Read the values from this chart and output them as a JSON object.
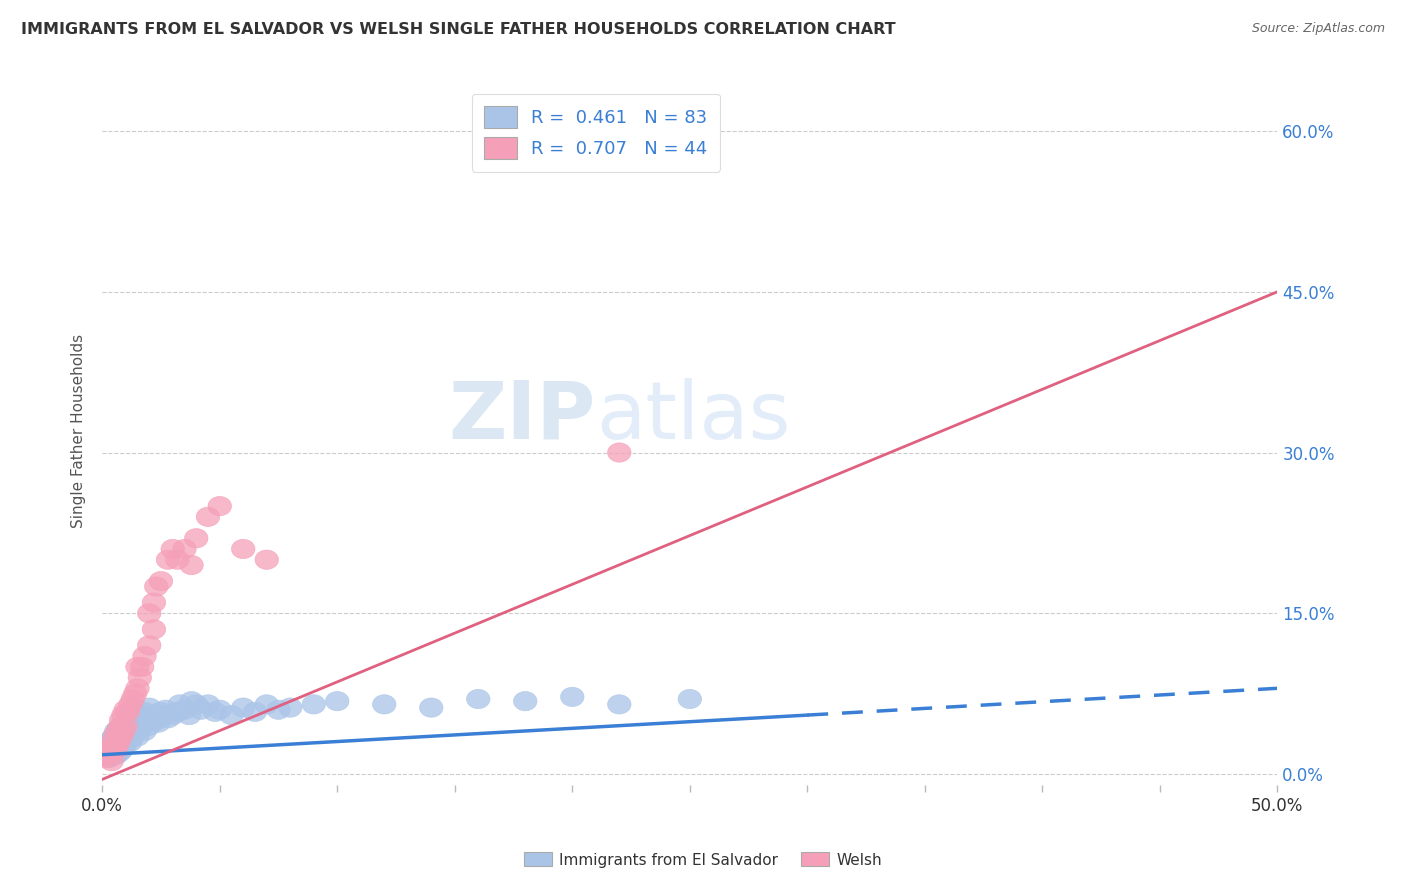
{
  "title": "IMMIGRANTS FROM EL SALVADOR VS WELSH SINGLE FATHER HOUSEHOLDS CORRELATION CHART",
  "source": "Source: ZipAtlas.com",
  "ylabel": "Single Father Households",
  "ytick_values": [
    0.0,
    0.15,
    0.3,
    0.45,
    0.6
  ],
  "xlim": [
    0.0,
    0.5
  ],
  "ylim": [
    -0.01,
    0.65
  ],
  "legend_line1": "R =  0.461   N = 83",
  "legend_line2": "R =  0.707   N = 44",
  "blue_color": "#aac4e8",
  "blue_line_color": "#3a7fd5",
  "pink_color": "#f5a0b8",
  "pink_line_color": "#e06080",
  "watermark_zip": "ZIP",
  "watermark_atlas": "atlas",
  "blue_scatter_x": [
    0.001,
    0.002,
    0.002,
    0.003,
    0.003,
    0.003,
    0.004,
    0.004,
    0.004,
    0.005,
    0.005,
    0.005,
    0.006,
    0.006,
    0.006,
    0.006,
    0.007,
    0.007,
    0.007,
    0.007,
    0.008,
    0.008,
    0.008,
    0.008,
    0.009,
    0.009,
    0.009,
    0.01,
    0.01,
    0.01,
    0.011,
    0.011,
    0.012,
    0.012,
    0.012,
    0.013,
    0.013,
    0.014,
    0.015,
    0.015,
    0.015,
    0.016,
    0.016,
    0.017,
    0.018,
    0.018,
    0.019,
    0.02,
    0.02,
    0.021,
    0.022,
    0.023,
    0.024,
    0.025,
    0.026,
    0.027,
    0.028,
    0.03,
    0.032,
    0.033,
    0.035,
    0.037,
    0.038,
    0.04,
    0.042,
    0.045,
    0.048,
    0.05,
    0.055,
    0.06,
    0.065,
    0.07,
    0.075,
    0.08,
    0.09,
    0.1,
    0.12,
    0.14,
    0.16,
    0.18,
    0.2,
    0.22,
    0.25
  ],
  "blue_scatter_y": [
    0.02,
    0.018,
    0.025,
    0.015,
    0.022,
    0.03,
    0.018,
    0.025,
    0.032,
    0.02,
    0.028,
    0.035,
    0.018,
    0.025,
    0.03,
    0.04,
    0.02,
    0.028,
    0.035,
    0.042,
    0.022,
    0.03,
    0.038,
    0.045,
    0.025,
    0.032,
    0.042,
    0.028,
    0.035,
    0.045,
    0.032,
    0.05,
    0.03,
    0.04,
    0.055,
    0.035,
    0.048,
    0.04,
    0.035,
    0.045,
    0.06,
    0.042,
    0.055,
    0.048,
    0.04,
    0.058,
    0.05,
    0.045,
    0.062,
    0.052,
    0.055,
    0.05,
    0.048,
    0.058,
    0.055,
    0.06,
    0.052,
    0.055,
    0.058,
    0.065,
    0.06,
    0.055,
    0.068,
    0.065,
    0.06,
    0.065,
    0.058,
    0.06,
    0.055,
    0.062,
    0.058,
    0.065,
    0.06,
    0.062,
    0.065,
    0.068,
    0.065,
    0.062,
    0.07,
    0.068,
    0.072,
    0.065,
    0.07
  ],
  "pink_scatter_x": [
    0.001,
    0.002,
    0.003,
    0.004,
    0.004,
    0.005,
    0.005,
    0.006,
    0.006,
    0.007,
    0.007,
    0.008,
    0.008,
    0.009,
    0.009,
    0.01,
    0.01,
    0.011,
    0.012,
    0.013,
    0.014,
    0.015,
    0.015,
    0.016,
    0.017,
    0.018,
    0.02,
    0.02,
    0.022,
    0.022,
    0.023,
    0.025,
    0.028,
    0.03,
    0.032,
    0.035,
    0.038,
    0.04,
    0.045,
    0.05,
    0.06,
    0.07,
    0.18,
    0.22
  ],
  "pink_scatter_y": [
    0.02,
    0.015,
    0.018,
    0.012,
    0.025,
    0.02,
    0.032,
    0.025,
    0.038,
    0.03,
    0.042,
    0.035,
    0.05,
    0.04,
    0.055,
    0.045,
    0.06,
    0.058,
    0.065,
    0.07,
    0.075,
    0.08,
    0.1,
    0.09,
    0.1,
    0.11,
    0.12,
    0.15,
    0.135,
    0.16,
    0.175,
    0.18,
    0.2,
    0.21,
    0.2,
    0.21,
    0.195,
    0.22,
    0.24,
    0.25,
    0.21,
    0.2,
    0.59,
    0.3
  ],
  "blue_line_x0": 0.0,
  "blue_line_y0": 0.018,
  "blue_line_x_solid_end": 0.3,
  "blue_line_y_solid_end": 0.055,
  "blue_line_x1": 0.5,
  "blue_line_y1": 0.08,
  "pink_line_x0": 0.0,
  "pink_line_y0": -0.005,
  "pink_line_x1": 0.5,
  "pink_line_y1": 0.45
}
